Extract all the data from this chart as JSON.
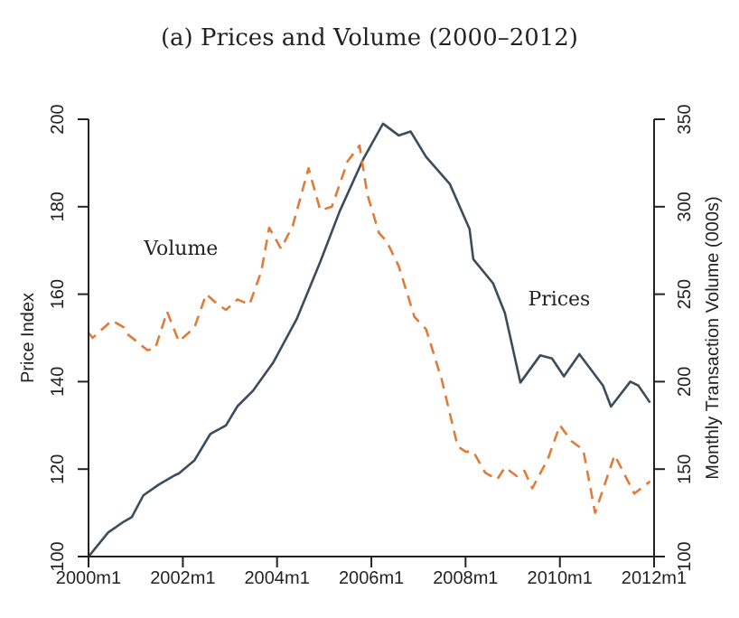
{
  "chart_data": {
    "type": "line",
    "title": "(a) Prices and Volume (2000–2012)",
    "ylabel": "Price Index",
    "y2label": "Monthly Transaction Volume (000s)",
    "xlim": [
      "2000-01",
      "2012-01"
    ],
    "xticks": [
      {
        "value": "2000-01",
        "label": "2000m1"
      },
      {
        "value": "2002-01",
        "label": "2002m1"
      },
      {
        "value": "2004-01",
        "label": "2004m1"
      },
      {
        "value": "2006-01",
        "label": "2006m1"
      },
      {
        "value": "2008-01",
        "label": "2008m1"
      },
      {
        "value": "2010-01",
        "label": "2010m1"
      },
      {
        "value": "2012-01",
        "label": "2012m1"
      }
    ],
    "ylim": [
      100,
      200
    ],
    "yticks": [
      100,
      120,
      140,
      160,
      180,
      200
    ],
    "y2lim": [
      100,
      350
    ],
    "y2ticks": [
      100,
      150,
      200,
      250,
      300,
      350
    ],
    "grid": false,
    "series": [
      {
        "name": "Prices",
        "color": "#3b4d5c",
        "line_style": "solid",
        "x": [
          "2000-01",
          "2000-06",
          "2000-10",
          "2000-12",
          "2001-03",
          "2001-07",
          "2001-11",
          "2001-12",
          "2002-04",
          "2002-08",
          "2002-12",
          "2003-03",
          "2003-07",
          "2003-12",
          "2004-06",
          "2004-12",
          "2005-05",
          "2005-11",
          "2006-04",
          "2006-08",
          "2006-11",
          "2007-03",
          "2007-09",
          "2008-02",
          "2008-03",
          "2008-08",
          "2008-11",
          "2009-03",
          "2009-08",
          "2009-11",
          "2010-02",
          "2010-06",
          "2010-12",
          "2011-02",
          "2011-07",
          "2011-09",
          "2011-12"
        ],
        "values": [
          100,
          105.5,
          108,
          109,
          114,
          116.5,
          118.6,
          119,
          122,
          128,
          130,
          134.4,
          138,
          144.3,
          154.3,
          167.4,
          179,
          191,
          199,
          196.3,
          197.2,
          191.4,
          185.2,
          174.9,
          168,
          162.5,
          155.7,
          139.8,
          146,
          145.3,
          141.2,
          146.3,
          139.1,
          134.3,
          140,
          139.1,
          135.2
        ]
      },
      {
        "name": "Volume",
        "color": "#e07b39",
        "line_style": "dashed",
        "axis": "y2",
        "x": [
          "2000-01",
          "2000-02",
          "2000-07",
          "2000-10",
          "2000-11",
          "2001-04",
          "2001-06",
          "2001-09",
          "2001-12",
          "2002-04",
          "2002-07",
          "2002-10",
          "2002-12",
          "2003-03",
          "2003-06",
          "2003-09",
          "2003-11",
          "2004-02",
          "2004-05",
          "2004-09",
          "2004-12",
          "2005-03",
          "2005-07",
          "2005-10",
          "2005-12",
          "2006-03",
          "2006-05",
          "2006-08",
          "2006-12",
          "2007-03",
          "2007-07",
          "2007-11",
          "2008-01",
          "2008-03",
          "2008-06",
          "2008-09",
          "2008-11",
          "2009-02",
          "2009-04",
          "2009-06",
          "2009-10",
          "2010-01",
          "2010-04",
          "2010-07",
          "2010-10",
          "2011-03",
          "2011-08",
          "2011-12"
        ],
        "values": [
          228,
          225,
          235,
          231,
          227,
          218,
          219,
          240,
          223,
          231,
          250,
          244,
          241,
          247,
          244,
          263,
          288,
          276,
          289,
          322,
          298,
          300,
          326,
          335,
          307,
          285,
          280,
          266,
          237,
          230,
          201,
          163,
          160,
          160,
          148,
          144,
          151,
          146,
          149,
          139,
          156,
          175,
          166,
          161,
          125,
          158,
          136,
          143
        ]
      }
    ]
  }
}
